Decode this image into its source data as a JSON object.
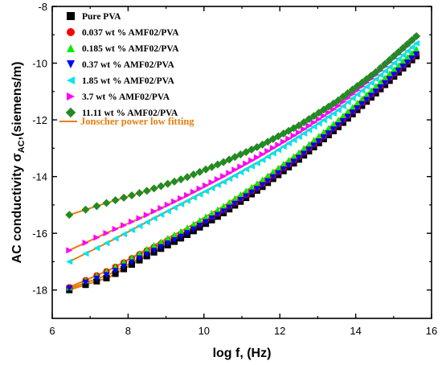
{
  "chart_data": {
    "type": "scatter",
    "title": "",
    "xlabel": "log f, (Hz)",
    "ylabel": "AC conductivity σ",
    "ylabel_sub": "AC",
    "ylabel_unit": ",(siemens/m)",
    "xlim": [
      6,
      16
    ],
    "ylim": [
      -19,
      -8
    ],
    "xticks": [
      "6",
      "8",
      "10",
      "12",
      "14",
      "16"
    ],
    "yticks": [
      "-8",
      "-10",
      "-12",
      "-14",
      "-16",
      "-18"
    ],
    "legend_position": "top-left",
    "fit_label": "Jonscher power low fitting",
    "fit_color": "#e87d0d",
    "series": [
      {
        "name": "Pure PVA",
        "marker": "square",
        "color": "#000000",
        "x": [
          6.45,
          7.5,
          8.5,
          9.5,
          10.5,
          11.5,
          12.5,
          13.5,
          14.5,
          15.6
        ],
        "y": [
          -18.0,
          -17.55,
          -16.8,
          -16.1,
          -15.3,
          -14.4,
          -13.4,
          -12.3,
          -11.1,
          -9.75
        ]
      },
      {
        "name": "0.037 wt % AMF02/PVA",
        "marker": "circle",
        "color": "#ff0000",
        "x": [
          6.45,
          7.5,
          8.5,
          9.5,
          10.5,
          11.5,
          12.5,
          13.5,
          14.5,
          15.6
        ],
        "y": [
          -17.9,
          -17.3,
          -16.6,
          -15.95,
          -15.2,
          -14.3,
          -13.3,
          -12.2,
          -11.0,
          -9.65
        ]
      },
      {
        "name": "0.185 wt % AMF02/PVA",
        "marker": "triangle-up",
        "color": "#00ee00",
        "x": [
          6.45,
          7.5,
          8.5,
          9.5,
          10.5,
          11.5,
          12.5,
          13.5,
          14.5,
          15.6
        ],
        "y": [
          -17.9,
          -17.3,
          -16.55,
          -15.85,
          -15.05,
          -14.15,
          -13.15,
          -12.05,
          -10.85,
          -9.5
        ]
      },
      {
        "name": "0.37  wt % AMF02/PVA",
        "marker": "triangle-down",
        "color": "#0000ff",
        "x": [
          6.45,
          7.5,
          8.5,
          9.5,
          10.5,
          11.5,
          12.5,
          13.5,
          14.5,
          15.6
        ],
        "y": [
          -17.95,
          -17.45,
          -16.75,
          -16.05,
          -15.25,
          -14.35,
          -13.35,
          -12.25,
          -11.05,
          -9.7
        ]
      },
      {
        "name": "1.85  wt % AMF02/PVA",
        "marker": "triangle-left",
        "color": "#00e5ee",
        "x": [
          6.45,
          7.5,
          8.5,
          9.5,
          10.5,
          11.5,
          12.5,
          13.5,
          14.5,
          15.6
        ],
        "y": [
          -17.0,
          -16.3,
          -15.6,
          -14.9,
          -14.2,
          -13.45,
          -12.6,
          -11.7,
          -10.6,
          -9.3
        ]
      },
      {
        "name": "3.7    wt % AMF02/PVA",
        "marker": "triangle-right",
        "color": "#ff00ff",
        "x": [
          6.45,
          7.5,
          8.5,
          9.5,
          10.5,
          11.5,
          12.5,
          13.5,
          14.5,
          15.6
        ],
        "y": [
          -16.6,
          -15.95,
          -15.35,
          -14.7,
          -14.0,
          -13.25,
          -12.45,
          -11.55,
          -10.45,
          -9.1
        ]
      },
      {
        "name": "11.11 wt % AMF02/PVA",
        "marker": "diamond",
        "color": "#228b22",
        "x": [
          6.45,
          7.5,
          8.5,
          9.5,
          10.5,
          11.5,
          12.5,
          13.5,
          14.5,
          15.6
        ],
        "y": [
          -15.35,
          -14.9,
          -14.5,
          -14.05,
          -13.5,
          -12.9,
          -12.2,
          -11.35,
          -10.35,
          -9.05
        ]
      }
    ]
  }
}
